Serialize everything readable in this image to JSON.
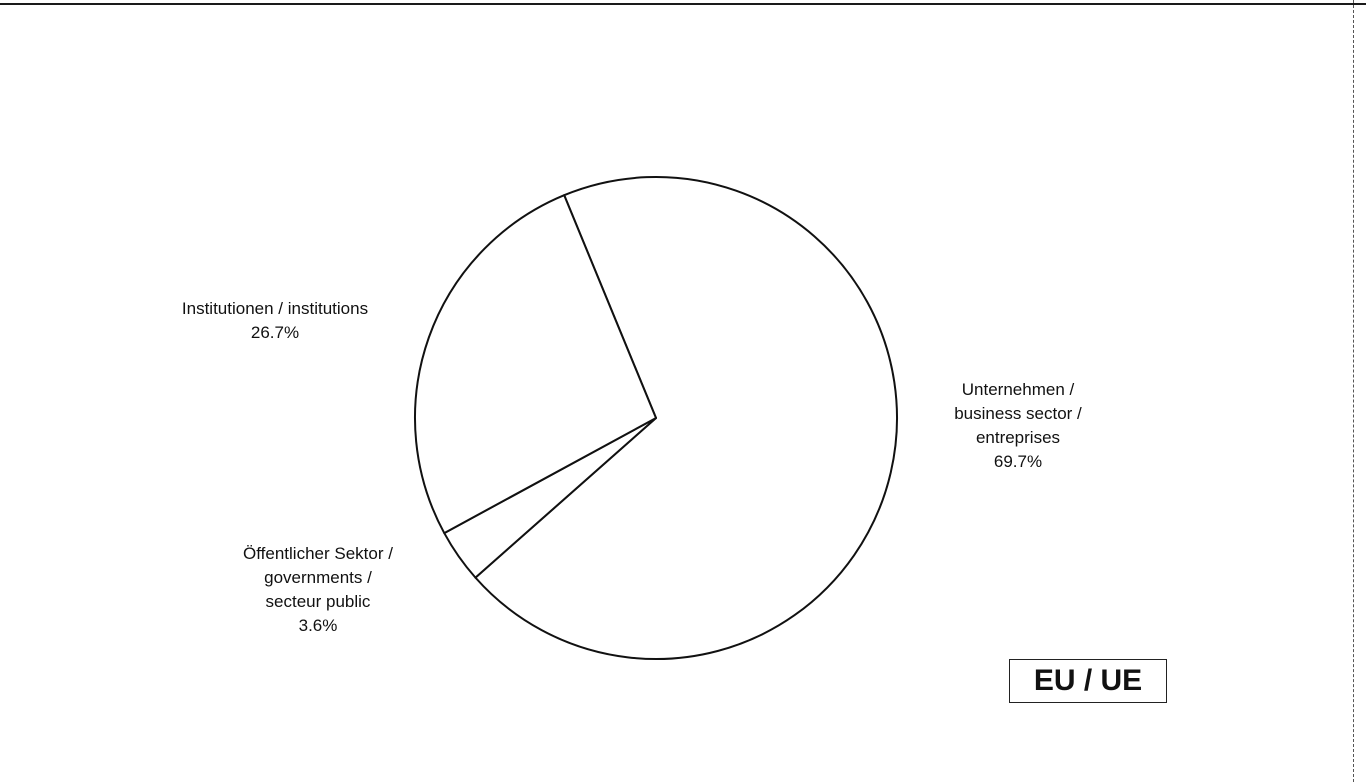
{
  "chart_data": {
    "type": "pie",
    "title": "",
    "slices": [
      {
        "label_lines": [
          "Unternehmen /",
          "business sector /",
          "entreprises"
        ],
        "value": 69.7,
        "value_label": "69.7%"
      },
      {
        "label_lines": [
          "Öffentlicher Sektor /",
          "governments /",
          "secteur public"
        ],
        "value": 3.6,
        "value_label": "3.6%"
      },
      {
        "label_lines": [
          "Institutionen / institutions"
        ],
        "value": 26.7,
        "value_label": "26.7%"
      }
    ],
    "fill_color": "#ffffff",
    "stroke_color": "#111111",
    "start_at": "top, clockwise",
    "legend": "none"
  },
  "badge": {
    "text": "EU / UE"
  }
}
